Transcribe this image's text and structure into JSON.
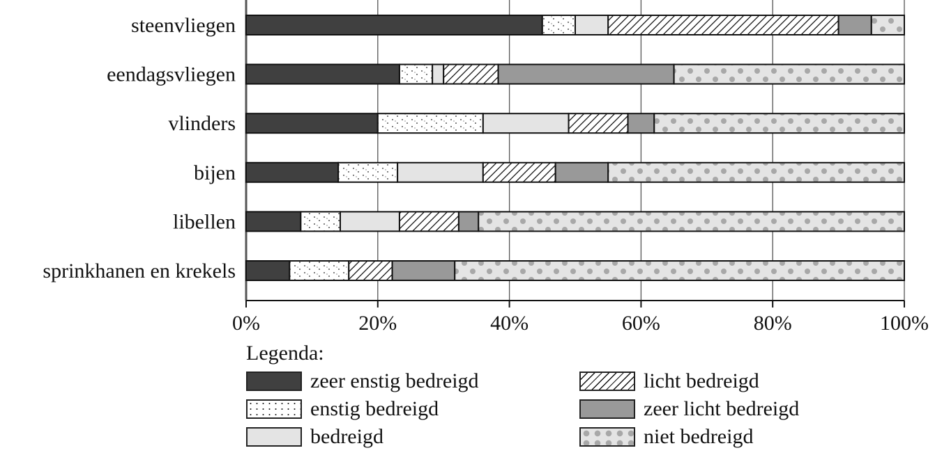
{
  "chart_data": {
    "type": "bar",
    "orientation": "horizontal",
    "stacked": true,
    "title": "",
    "xlabel": "",
    "ylabel": "",
    "xlim": [
      0,
      100
    ],
    "x_ticks": [
      "0%",
      "20%",
      "40%",
      "60%",
      "80%",
      "100%"
    ],
    "grid": true,
    "legend_position": "bottom",
    "legend_title": "Legenda:",
    "categories": [
      "steenvliegen",
      "eendagsvliegen",
      "vlinders",
      "bijen",
      "libellen",
      "sprinkhanen en krekels"
    ],
    "series": [
      {
        "name": "zeer enstig bedreigd",
        "pattern": "solid-dark",
        "color": "#404040",
        "values": [
          45,
          23.3,
          20,
          14,
          8.3,
          6.6
        ]
      },
      {
        "name": "enstig bedreigd",
        "pattern": "dots",
        "color": "#ffffff",
        "values": [
          5,
          5,
          16,
          9,
          6,
          9
        ]
      },
      {
        "name": "bedreigd",
        "pattern": "solid-light",
        "color": "#e4e4e4",
        "values": [
          5,
          1.7,
          13,
          13,
          9,
          0
        ]
      },
      {
        "name": "licht bedreigd",
        "pattern": "hatch",
        "color": "#ffffff",
        "values": [
          35,
          8.3,
          9,
          11,
          9,
          6.6
        ]
      },
      {
        "name": "zeer licht bedreigd",
        "pattern": "solid-mid",
        "color": "#999999",
        "values": [
          5,
          26.7,
          4,
          8,
          3,
          9.5
        ]
      },
      {
        "name": "niet bedreigd",
        "pattern": "polka",
        "color": "#e4e4e4",
        "values": [
          5,
          35,
          38,
          45,
          64.7,
          68.3
        ]
      }
    ]
  },
  "legend": {
    "title": "Legenda:",
    "items": [
      {
        "label": "zeer enstig bedreigd",
        "pattern": "solid-dark"
      },
      {
        "label": "licht bedreigd",
        "pattern": "hatch"
      },
      {
        "label": "enstig bedreigd",
        "pattern": "dots"
      },
      {
        "label": "zeer licht bedreigd",
        "pattern": "solid-mid"
      },
      {
        "label": "bedreigd",
        "pattern": "solid-light"
      },
      {
        "label": "niet bedreigd",
        "pattern": "polka"
      }
    ]
  }
}
